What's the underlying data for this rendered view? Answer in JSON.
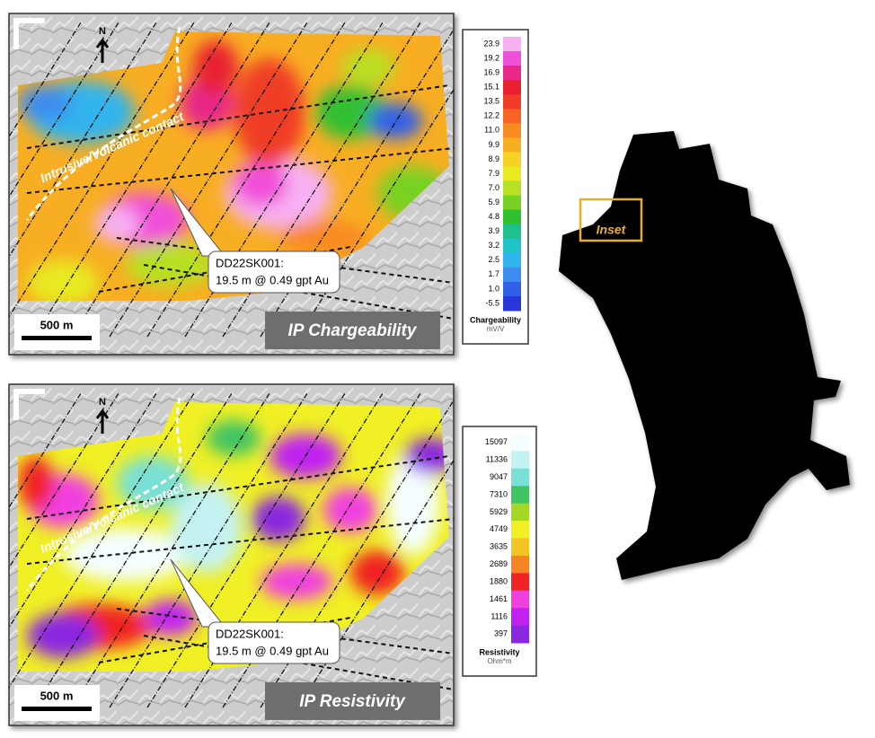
{
  "panels": [
    {
      "north": "N",
      "contact_label": "Intrusive/Volcanic contact",
      "callout": {
        "line1": "DD22SK001:",
        "line2": "19.5 m @ 0.49 gpt Au"
      },
      "scale_bar": "500 m",
      "title": "IP Chargeability",
      "legend": {
        "title": "Chargeability",
        "unit": "mV/V",
        "labels": [
          "23.9",
          "19.2",
          "16.9",
          "15.1",
          "13.5",
          "12.2",
          "11.0",
          "9.9",
          "8.9",
          "7.9",
          "7.0",
          "5.9",
          "4.8",
          "3.9",
          "3.2",
          "2.5",
          "1.7",
          "1.0",
          "-5.5"
        ],
        "colors": [
          "#f7b0f2",
          "#f050d8",
          "#e82888",
          "#e82030",
          "#f03c28",
          "#f86424",
          "#f88a22",
          "#f8ae22",
          "#f8d222",
          "#e8ea22",
          "#b8e024",
          "#78d224",
          "#30c030",
          "#20c08c",
          "#20c4c8",
          "#30b4ec",
          "#3c8cf0",
          "#3060e8",
          "#2838d8"
        ]
      }
    },
    {
      "north": "N",
      "contact_label": "Intrusive/Volcanic contact",
      "callout": {
        "line1": "DD22SK001:",
        "line2": "19.5 m @ 0.49 gpt Au"
      },
      "scale_bar": "500 m",
      "title": "IP Resistivity",
      "legend": {
        "title": "Resistivity",
        "unit": "Ohm*m",
        "labels": [
          "15097",
          "11336",
          "9047",
          "7310",
          "5929",
          "4749",
          "3635",
          "2689",
          "1880",
          "1461",
          "1116",
          "397"
        ],
        "colors": [
          "#f4fefe",
          "#c4f2f2",
          "#78e0d4",
          "#40c464",
          "#a4d824",
          "#f0f024",
          "#f4c424",
          "#f48424",
          "#f02424",
          "#f040e0",
          "#c020f0",
          "#8a28e0"
        ]
      }
    }
  ],
  "location_map": {
    "inset_label": "Inset"
  }
}
